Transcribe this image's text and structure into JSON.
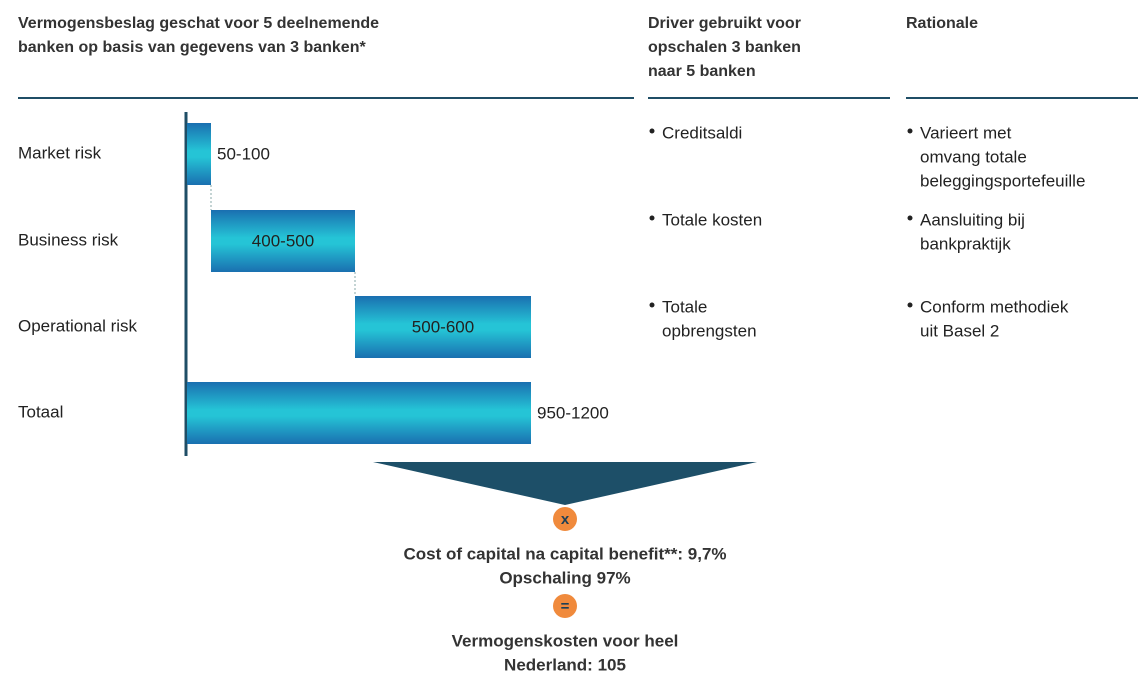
{
  "header": {
    "title": [
      "Vermogensbeslag geschat voor 5 deelnemende",
      "banken op basis van gegevens van 3 banken*"
    ],
    "driver": [
      "Driver gebruikt voor",
      "opschalen 3 banken",
      "naar 5 banken"
    ],
    "rationale": [
      "Rationale"
    ]
  },
  "chart_data": {
    "type": "waterfall",
    "categories": [
      "Market risk",
      "Business risk",
      "Operational risk",
      "Totaal"
    ],
    "low": [
      50,
      400,
      500,
      950
    ],
    "high": [
      100,
      500,
      600,
      1200
    ],
    "value_labels": [
      "50-100",
      "400-500",
      "500-600",
      "950-1200"
    ]
  },
  "rows": [
    {
      "driver": [
        "Creditsaldi"
      ],
      "rationale": [
        "Varieert met",
        "omvang totale",
        "beleggingsportefeuille"
      ]
    },
    {
      "driver": [
        "Totale kosten"
      ],
      "rationale": [
        "Aansluiting bij",
        "bankpraktijk"
      ]
    },
    {
      "driver": [
        "Totale",
        "opbrengsten"
      ],
      "rationale": [
        "Conform methodiek",
        "uit Basel 2"
      ]
    }
  ],
  "result": {
    "operator1": "x",
    "line1": "Cost of capital na capital benefit**: 9,7%",
    "line2": "Opschaling 97%",
    "operator2": "=",
    "line3": "Vermogenskosten voor heel",
    "line4": "Nederland: 105"
  }
}
